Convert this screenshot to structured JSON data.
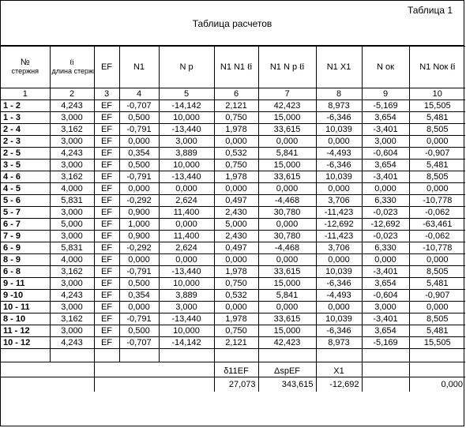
{
  "header": {
    "table_no": "Таблица 1",
    "title": "Таблица расчетов"
  },
  "columns": [
    {
      "main": "№",
      "sub": "стержня"
    },
    {
      "main": "ℓi",
      "sub": "длина стержня"
    },
    {
      "main": "EF",
      "sub": ""
    },
    {
      "main": "N1",
      "sub": ""
    },
    {
      "main": "N p",
      "sub": ""
    },
    {
      "main": "N1 N1 ℓi",
      "sub": ""
    },
    {
      "main": "N1 N p ℓi",
      "sub": ""
    },
    {
      "main": "N1 X1",
      "sub": ""
    },
    {
      "main": "N ок",
      "sub": ""
    },
    {
      "main": "N1 Nок ℓi",
      "sub": ""
    }
  ],
  "col_numbers": [
    "1",
    "2",
    "3",
    "4",
    "5",
    "6",
    "7",
    "8",
    "9",
    "10"
  ],
  "rows": [
    [
      "1 - 2",
      "4,243",
      "EF",
      "-0,707",
      "-14,142",
      "2,121",
      "42,423",
      "8,973",
      "-5,169",
      "15,505"
    ],
    [
      "1 - 3",
      "3,000",
      "EF",
      "0,500",
      "10,000",
      "0,750",
      "15,000",
      "-6,346",
      "3,654",
      "5,481"
    ],
    [
      "2 - 4",
      "3,162",
      "EF",
      "-0,791",
      "-13,440",
      "1,978",
      "33,615",
      "10,039",
      "-3,401",
      "8,505"
    ],
    [
      "2 - 3",
      "3,000",
      "EF",
      "0,000",
      "3,000",
      "0,000",
      "0,000",
      "0,000",
      "3,000",
      "0,000"
    ],
    [
      "2 - 5",
      "4,243",
      "EF",
      "0,354",
      "3,889",
      "0,532",
      "5,841",
      "-4,493",
      "-0,604",
      "-0,907"
    ],
    [
      "3 - 5",
      "3,000",
      "EF",
      "0,500",
      "10,000",
      "0,750",
      "15,000",
      "-6,346",
      "3,654",
      "5,481"
    ],
    [
      "4 - 6",
      "3,162",
      "EF",
      "-0,791",
      "-13,440",
      "1,978",
      "33,615",
      "10,039",
      "-3,401",
      "8,505"
    ],
    [
      "4 - 5",
      "4,000",
      "EF",
      "0,000",
      "0,000",
      "0,000",
      "0,000",
      "0,000",
      "0,000",
      "0,000"
    ],
    [
      "5 - 6",
      "5,831",
      "EF",
      "-0,292",
      "2,624",
      "0,497",
      "-4,468",
      "3,706",
      "6,330",
      "-10,778"
    ],
    [
      "5 - 7",
      "3,000",
      "EF",
      "0,900",
      "11,400",
      "2,430",
      "30,780",
      "-11,423",
      "-0,023",
      "-0,062"
    ],
    [
      "6 - 7",
      "5,000",
      "EF",
      "1,000",
      "0,000",
      "5,000",
      "0,000",
      "-12,692",
      "-12,692",
      "-63,461"
    ],
    [
      "7 - 9",
      "3,000",
      "EF",
      "0,900",
      "11,400",
      "2,430",
      "30,780",
      "-11,423",
      "-0,023",
      "-0,062"
    ],
    [
      "6 - 9",
      "5,831",
      "EF",
      "-0,292",
      "2,624",
      "0,497",
      "-4,468",
      "3,706",
      "6,330",
      "-10,778"
    ],
    [
      "8 - 9",
      "4,000",
      "EF",
      "0,000",
      "0,000",
      "0,000",
      "0,000",
      "0,000",
      "0,000",
      "0,000"
    ],
    [
      "6 - 8",
      "3,162",
      "EF",
      "-0,791",
      "-13,440",
      "1,978",
      "33,615",
      "10,039",
      "-3,401",
      "8,505"
    ],
    [
      "9 - 11",
      "3,000",
      "EF",
      "0,500",
      "10,000",
      "0,750",
      "15,000",
      "-6,346",
      "3,654",
      "5,481"
    ],
    [
      "9 -10",
      "4,243",
      "EF",
      "0,354",
      "3,889",
      "0,532",
      "5,841",
      "-4,493",
      "-0,604",
      "-0,907"
    ],
    [
      "10 - 11",
      "3,000",
      "EF",
      "0,000",
      "3,000",
      "0,000",
      "0,000",
      "0,000",
      "3,000",
      "0,000"
    ],
    [
      "8 - 10",
      "3,162",
      "EF",
      "-0,791",
      "-13,440",
      "1,978",
      "33,615",
      "10,039",
      "-3,401",
      "8,505"
    ],
    [
      "11 - 12",
      "3,000",
      "EF",
      "0,500",
      "10,000",
      "0,750",
      "15,000",
      "-6,346",
      "3,654",
      "5,481"
    ],
    [
      "10 - 12",
      "4,243",
      "EF",
      "-0,707",
      "-14,142",
      "2,121",
      "42,423",
      "8,973",
      "-5,169",
      "15,505"
    ]
  ],
  "summary": {
    "labels": [
      "δ11EF",
      "ΔspEF",
      "X1"
    ],
    "values": [
      "27,073",
      "343,615",
      "-12,692",
      "0,000"
    ]
  }
}
